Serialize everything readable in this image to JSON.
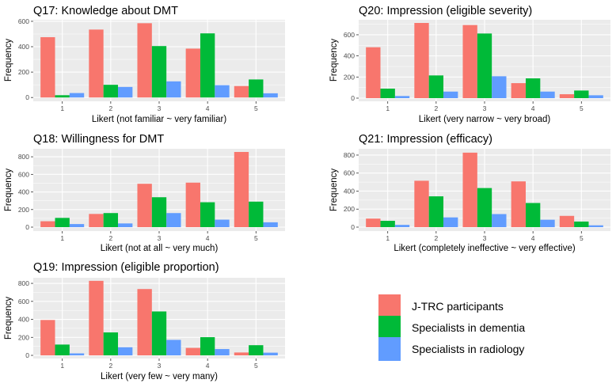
{
  "chart_data": [
    {
      "type": "bar",
      "title": "Q17: Knowledge about DMT",
      "xlabel": "Likert (not familiar ~ very familiar)",
      "ylabel": "Frequency",
      "categories": [
        "1",
        "2",
        "3",
        "4",
        "5"
      ],
      "yticks": [
        0,
        200,
        400,
        600
      ],
      "ylim": [
        -30,
        612
      ],
      "grid": true,
      "series": [
        {
          "name": "J-TRC participants",
          "values": [
            475,
            535,
            585,
            385,
            90
          ]
        },
        {
          "name": "Specialists in dementia",
          "values": [
            18,
            100,
            405,
            505,
            142
          ]
        },
        {
          "name": "Specialists in radiology",
          "values": [
            35,
            83,
            127,
            97,
            33
          ]
        }
      ]
    },
    {
      "type": "bar",
      "title": "Q20: Impression (eligible severity)",
      "xlabel": "Likert (very narrow ~ very broad)",
      "ylabel": "Frequency",
      "categories": [
        "1",
        "2",
        "3",
        "4",
        "5"
      ],
      "yticks": [
        0,
        200,
        400,
        600
      ],
      "ylim": [
        -30,
        742
      ],
      "grid": true,
      "series": [
        {
          "name": "J-TRC participants",
          "values": [
            482,
            712,
            692,
            142,
            37
          ]
        },
        {
          "name": "Specialists in dementia",
          "values": [
            90,
            215,
            612,
            187,
            72
          ]
        },
        {
          "name": "Specialists in radiology",
          "values": [
            20,
            62,
            207,
            62,
            27
          ]
        }
      ]
    },
    {
      "type": "bar",
      "title": "Q18: Willingness for DMT",
      "xlabel": "Likert (not at all ~ very much)",
      "ylabel": "Frequency",
      "categories": [
        "1",
        "2",
        "3",
        "4",
        "5"
      ],
      "yticks": [
        0,
        200,
        400,
        600,
        800
      ],
      "ylim": [
        -45,
        891
      ],
      "grid": true,
      "series": [
        {
          "name": "J-TRC participants",
          "values": [
            67,
            150,
            493,
            506,
            855
          ]
        },
        {
          "name": "Specialists in dementia",
          "values": [
            105,
            160,
            340,
            283,
            290
          ]
        },
        {
          "name": "Specialists in radiology",
          "values": [
            35,
            42,
            160,
            85,
            55
          ]
        }
      ]
    },
    {
      "type": "bar",
      "title": "Q21: Impression (efficacy)",
      "xlabel": "Likert (completely ineffective ~ very effective)",
      "ylabel": "Frequency",
      "categories": [
        "1",
        "2",
        "3",
        "4",
        "5"
      ],
      "yticks": [
        0,
        200,
        400,
        600,
        800
      ],
      "ylim": [
        -44,
        870
      ],
      "grid": true,
      "series": [
        {
          "name": "J-TRC participants",
          "values": [
            95,
            515,
            827,
            508,
            125
          ]
        },
        {
          "name": "Specialists in dementia",
          "values": [
            70,
            342,
            434,
            268,
            62
          ]
        },
        {
          "name": "Specialists in radiology",
          "values": [
            25,
            108,
            145,
            82,
            20
          ]
        }
      ]
    },
    {
      "type": "bar",
      "title": "Q19: Impression (eligible proportion)",
      "xlabel": "Likert (very few ~ very many)",
      "ylabel": "Frequency",
      "categories": [
        "1",
        "2",
        "3",
        "4",
        "5"
      ],
      "yticks": [
        0,
        200,
        400,
        600,
        800
      ],
      "ylim": [
        -35,
        862
      ],
      "grid": true,
      "series": [
        {
          "name": "J-TRC participants",
          "values": [
            393,
            828,
            737,
            83,
            32
          ]
        },
        {
          "name": "Specialists in dementia",
          "values": [
            120,
            255,
            488,
            202,
            113
          ]
        },
        {
          "name": "Specialists in radiology",
          "values": [
            22,
            90,
            172,
            70,
            30
          ]
        }
      ]
    }
  ],
  "legend": {
    "placement": "bottom-right",
    "items": [
      {
        "label": "J-TRC participants",
        "color": "#F8766D"
      },
      {
        "label": "Specialists in dementia",
        "color": "#00BA38"
      },
      {
        "label": "Specialists in radiology",
        "color": "#619CFF"
      }
    ]
  },
  "colors": {
    "panel_bg": "#EBEBEB",
    "grid": "#FFFFFF"
  }
}
